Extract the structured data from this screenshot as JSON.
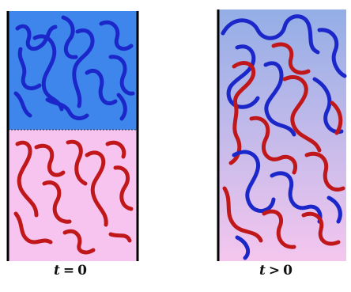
{
  "panels": [
    {
      "id": "initial",
      "caption": {
        "var": "t",
        "rel": "=",
        "val": "0"
      },
      "top_color": "#3f86ec",
      "bottom_color": "#f6c4ef",
      "chain_colors": {
        "blue": "#1b27c9",
        "red": "#c0171a"
      }
    },
    {
      "id": "mixing",
      "caption": {
        "var": "t",
        "rel": ">",
        "val": "0"
      },
      "gradient_top": "#93aee6",
      "gradient_bottom": "#f4c6ee",
      "chain_colors": {
        "blue": "#1b27c9",
        "red": "#c0171a"
      }
    }
  ]
}
